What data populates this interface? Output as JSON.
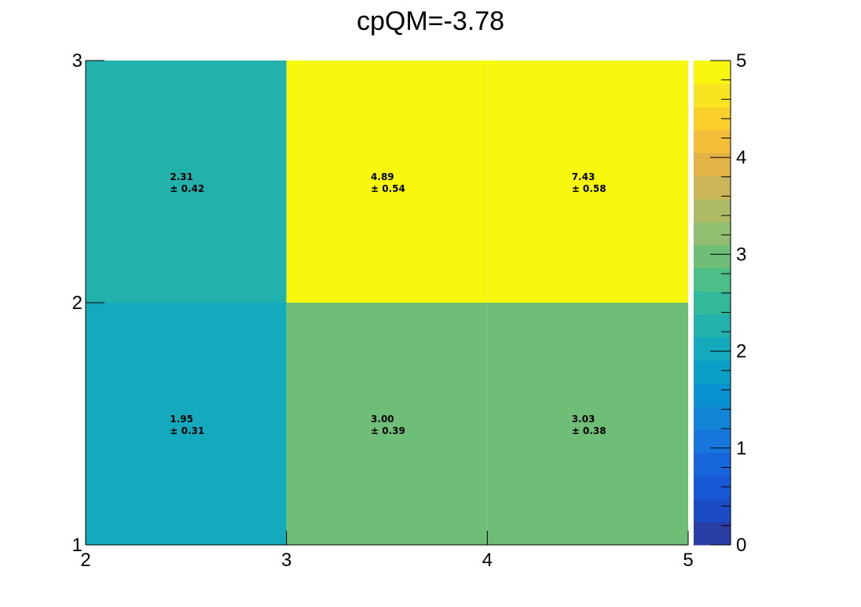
{
  "chart_data": {
    "type": "heatmap",
    "title": "cpQM=-3.78",
    "xlabel": "",
    "ylabel": "",
    "xlim": [
      2,
      5
    ],
    "ylim": [
      1,
      3
    ],
    "x_edges": [
      2,
      3,
      4,
      5
    ],
    "y_edges": [
      1,
      2,
      3
    ],
    "x_ticks": [
      "2",
      "3",
      "4",
      "5"
    ],
    "y_ticks": [
      "1",
      "2",
      "3"
    ],
    "cells": [
      {
        "x0": 2,
        "x1": 3,
        "y0": 1,
        "y1": 2,
        "value": 1.95,
        "value_label": "1.95",
        "error_label": "± 0.31"
      },
      {
        "x0": 3,
        "x1": 4,
        "y0": 1,
        "y1": 2,
        "value": 3.0,
        "value_label": "3.00",
        "error_label": "± 0.39"
      },
      {
        "x0": 4,
        "x1": 5,
        "y0": 1,
        "y1": 2,
        "value": 3.03,
        "value_label": "3.03",
        "error_label": "± 0.38"
      },
      {
        "x0": 2,
        "x1": 3,
        "y0": 2,
        "y1": 3,
        "value": 2.31,
        "value_label": "2.31",
        "error_label": "± 0.42"
      },
      {
        "x0": 3,
        "x1": 4,
        "y0": 2,
        "y1": 3,
        "value": 4.89,
        "value_label": "4.89",
        "error_label": "± 0.54"
      },
      {
        "x0": 4,
        "x1": 5,
        "y0": 2,
        "y1": 3,
        "value": 7.43,
        "value_label": "7.43",
        "error_label": "± 0.58"
      }
    ],
    "colorbar": {
      "min": 0,
      "max": 5,
      "ticks": [
        "0",
        "1",
        "2",
        "3",
        "4",
        "5"
      ],
      "colors": [
        "#2b3ea6",
        "#1c4bc6",
        "#1758d6",
        "#1766dc",
        "#1676dc",
        "#1184d6",
        "#0a92d0",
        "#08a0c7",
        "#14a9bc",
        "#22b1ad",
        "#32b99a",
        "#4cbe87",
        "#6fbe78",
        "#92be70",
        "#aebb64",
        "#cbb558",
        "#e2b447",
        "#f4bd3a",
        "#fbd02a",
        "#f8e41f",
        "#f8f80e"
      ]
    }
  }
}
